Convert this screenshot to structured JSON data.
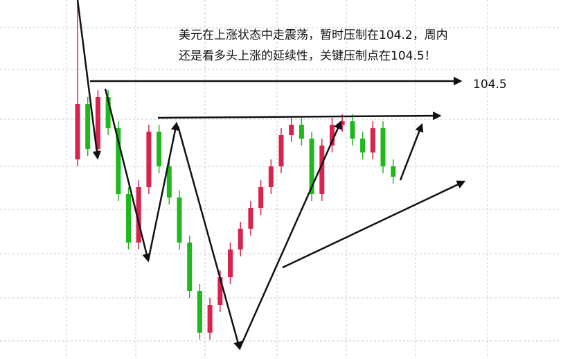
{
  "annotation": {
    "line1": "美元在上涨状态中走震荡，暂时压制在104.2，周内",
    "line2": "还是看多头上涨的延续性，关键压制点在104.5！"
  },
  "level_label": "104.5",
  "chart_data": {
    "type": "candlestick",
    "ylim": [
      102.094,
      105.202
    ],
    "up_color": "#d6244f",
    "down_color": "#1fb81f",
    "open": [
      103.822,
      104.302,
      103.912,
      104.362,
      104.092,
      103.522,
      103.102,
      103.582,
      104.062,
      103.762,
      103.492,
      103.102,
      102.682,
      102.322,
      102.562,
      102.802,
      103.042,
      103.222,
      103.402,
      103.582,
      103.762,
      104.032,
      104.122,
      104.002,
      103.522,
      103.942,
      104.122,
      104.152,
      104.002,
      103.882,
      104.092,
      103.762
    ],
    "high": [
      105.2,
      104.362,
      104.422,
      104.422,
      104.152,
      103.582,
      103.642,
      104.122,
      104.122,
      103.822,
      103.552,
      103.162,
      102.742,
      102.622,
      102.862,
      103.102,
      103.282,
      103.462,
      103.642,
      103.822,
      104.092,
      104.182,
      104.182,
      104.062,
      104.002,
      104.182,
      104.212,
      104.212,
      104.062,
      104.152,
      104.152,
      103.822
    ],
    "low": [
      103.762,
      103.852,
      103.852,
      104.032,
      103.462,
      103.042,
      103.042,
      103.522,
      103.702,
      103.432,
      103.042,
      102.622,
      102.262,
      102.262,
      102.502,
      102.742,
      102.982,
      103.162,
      103.342,
      103.522,
      103.702,
      103.972,
      103.942,
      103.462,
      103.462,
      103.882,
      104.062,
      103.942,
      103.822,
      103.822,
      103.702,
      103.612
    ],
    "close": [
      104.302,
      103.912,
      104.362,
      104.092,
      103.522,
      103.102,
      103.582,
      104.062,
      103.762,
      103.492,
      103.102,
      102.682,
      102.322,
      102.562,
      102.802,
      103.042,
      103.222,
      103.402,
      103.582,
      103.762,
      104.032,
      104.122,
      104.002,
      103.522,
      103.942,
      104.122,
      104.152,
      104.002,
      103.882,
      104.092,
      103.762,
      103.672
    ]
  }
}
